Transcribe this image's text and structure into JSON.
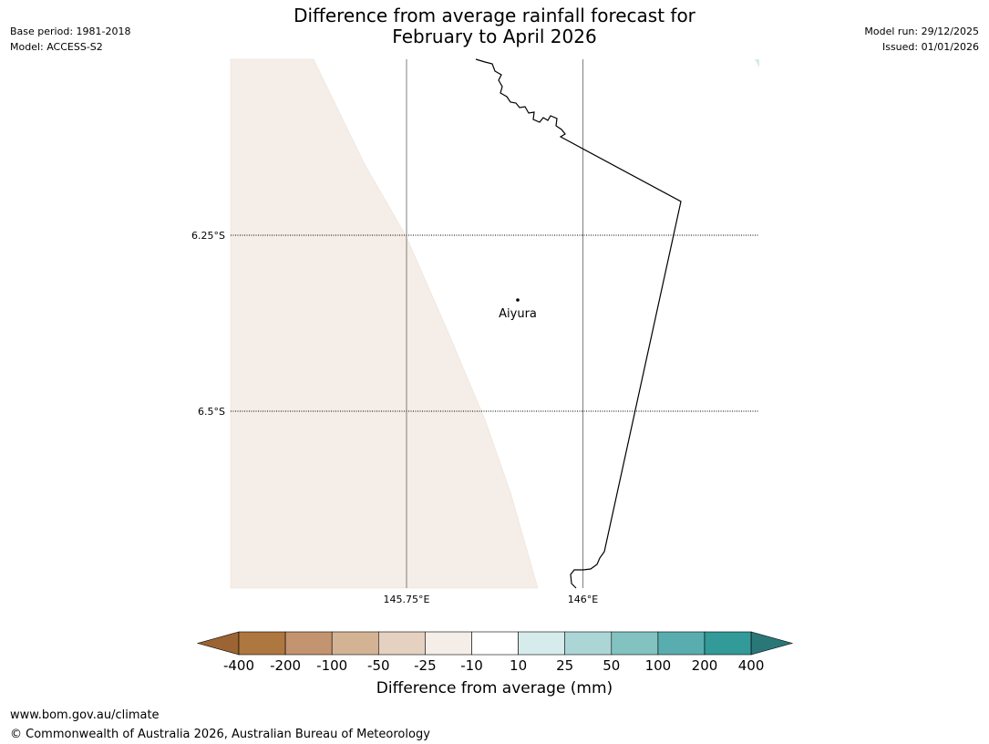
{
  "header": {
    "title_line1": "Difference from average rainfall forecast for",
    "title_line2": "February to April 2026",
    "base_period": "Base period: 1981-2018",
    "model": "Model: ACCESS-S2",
    "model_run": "Model run: 29/12/2025",
    "issued": "Issued: 01/01/2026"
  },
  "map": {
    "lat_ticks": [
      "6.25°S",
      "6.5°S"
    ],
    "lon_ticks": [
      "145.75°E",
      "146°E"
    ],
    "place": {
      "name": "Aiyura",
      "lat": -6.34,
      "lon": 145.905
    },
    "colors": {
      "ocean_fill": "#ffffff",
      "dry_fill": "#f5ede7",
      "coast": "#000000",
      "grid": "#7f7f7f"
    }
  },
  "colorbar": {
    "title": "Difference from average (mm)",
    "labels": [
      "-400",
      "-200",
      "-100",
      "-50",
      "-25",
      "-10",
      "10",
      "25",
      "50",
      "100",
      "200",
      "400"
    ],
    "colors": [
      "#9b6432",
      "#ae773f",
      "#c39470",
      "#d4b394",
      "#e5d1c0",
      "#f5ede7",
      "#ffffff",
      "#d6ebeb",
      "#acd5d6",
      "#82c2c0",
      "#5aadae",
      "#329a98",
      "#2a7777"
    ]
  },
  "footer": {
    "url": "www.bom.gov.au/climate",
    "copyright": "© Commonwealth of Australia 2026, Australian Bureau of Meteorology"
  }
}
